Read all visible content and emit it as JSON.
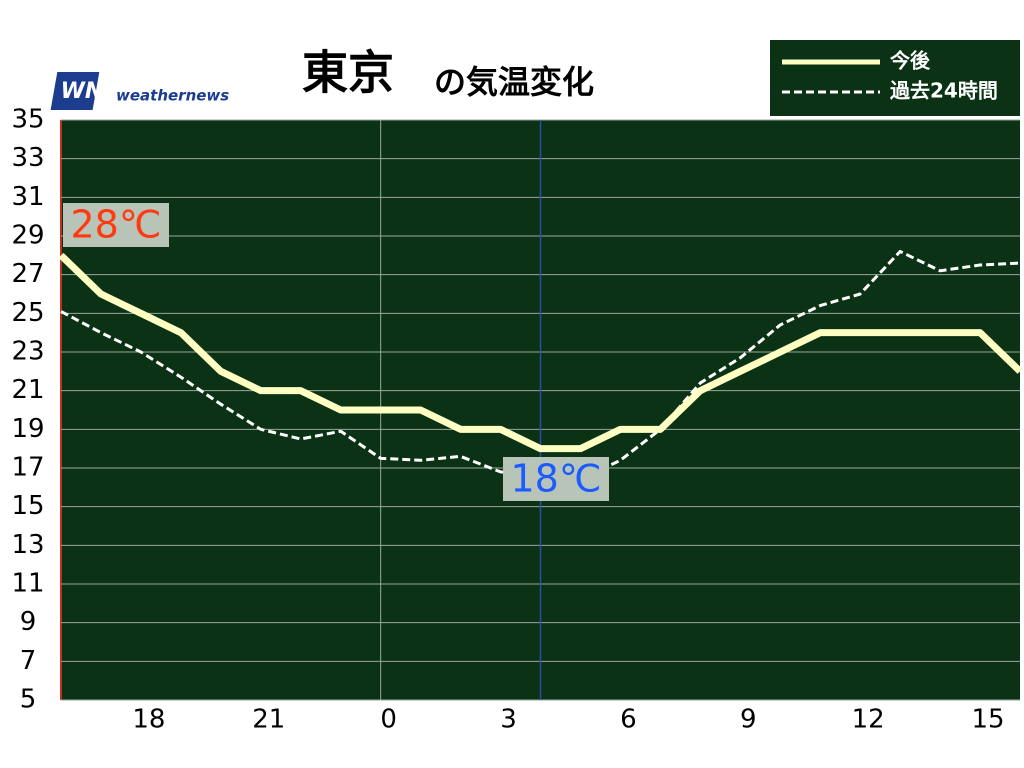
{
  "chart_data": {
    "type": "line",
    "title_main": "東京",
    "title_sub": "の気温変化",
    "logo_mark": "WNI",
    "logo": "weathernews",
    "categories": [
      null,
      null,
      "18",
      null,
      null,
      "21",
      null,
      null,
      "0",
      null,
      null,
      "3",
      null,
      null,
      "6",
      null,
      null,
      "9",
      null,
      null,
      "12",
      null,
      null,
      "15",
      null
    ],
    "series": [
      {
        "name": "今後",
        "color": "#ffffc4",
        "dash": false,
        "values": [
          28,
          26,
          25,
          24,
          22,
          21,
          21,
          20,
          20,
          20,
          19,
          19,
          18,
          18,
          19,
          19,
          21,
          22,
          23,
          24,
          24,
          24,
          24,
          24,
          22
        ]
      },
      {
        "name": "過去24時間",
        "color": "#ffffff",
        "dash": true,
        "values": [
          25.1,
          24.0,
          23.0,
          21.7,
          20.3,
          19.0,
          18.5,
          18.9,
          17.5,
          17.4,
          17.6,
          16.8,
          16.6,
          16.4,
          17.4,
          19.0,
          21.4,
          22.7,
          24.4,
          25.4,
          26.0,
          28.2,
          27.2,
          27.5,
          27.6
        ]
      }
    ],
    "annotations": [
      {
        "text": "28℃",
        "color": "#ff3a10"
      },
      {
        "text": "18℃",
        "color": "#1a5cff"
      }
    ],
    "ylim": [
      5,
      35
    ],
    "yticks": [
      5,
      7,
      9,
      11,
      13,
      15,
      17,
      19,
      21,
      23,
      25,
      27,
      29,
      31,
      33,
      35
    ],
    "grid": true,
    "legend": "top-right"
  }
}
